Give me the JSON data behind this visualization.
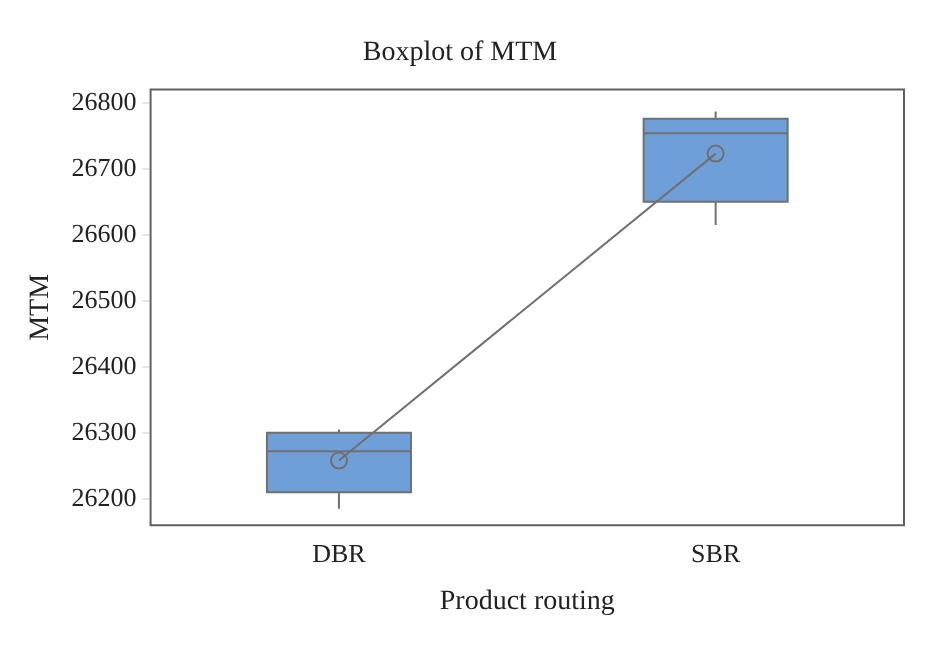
{
  "chart_data": {
    "type": "box",
    "title": "Boxplot of MTM",
    "xlabel": "Product routing",
    "ylabel": "MTM",
    "categories": [
      "DBR",
      "SBR"
    ],
    "boxes": [
      {
        "low": 26185,
        "q1": 26210,
        "median": 26272,
        "q3": 26300,
        "high": 26305
      },
      {
        "low": 26615,
        "q1": 26650,
        "median": 26754,
        "q3": 26776,
        "high": 26787
      }
    ],
    "series": [
      {
        "type": "line",
        "x": [
          "DBR",
          "SBR"
        ],
        "values": [
          26258,
          26723
        ],
        "color": "#707070",
        "marker": "circle"
      }
    ],
    "color": "#6f9fd8",
    "ylim": [
      26160,
      26820
    ],
    "yticks": [
      26200,
      26300,
      26400,
      26500,
      26600,
      26700,
      26800
    ],
    "grid": false
  }
}
